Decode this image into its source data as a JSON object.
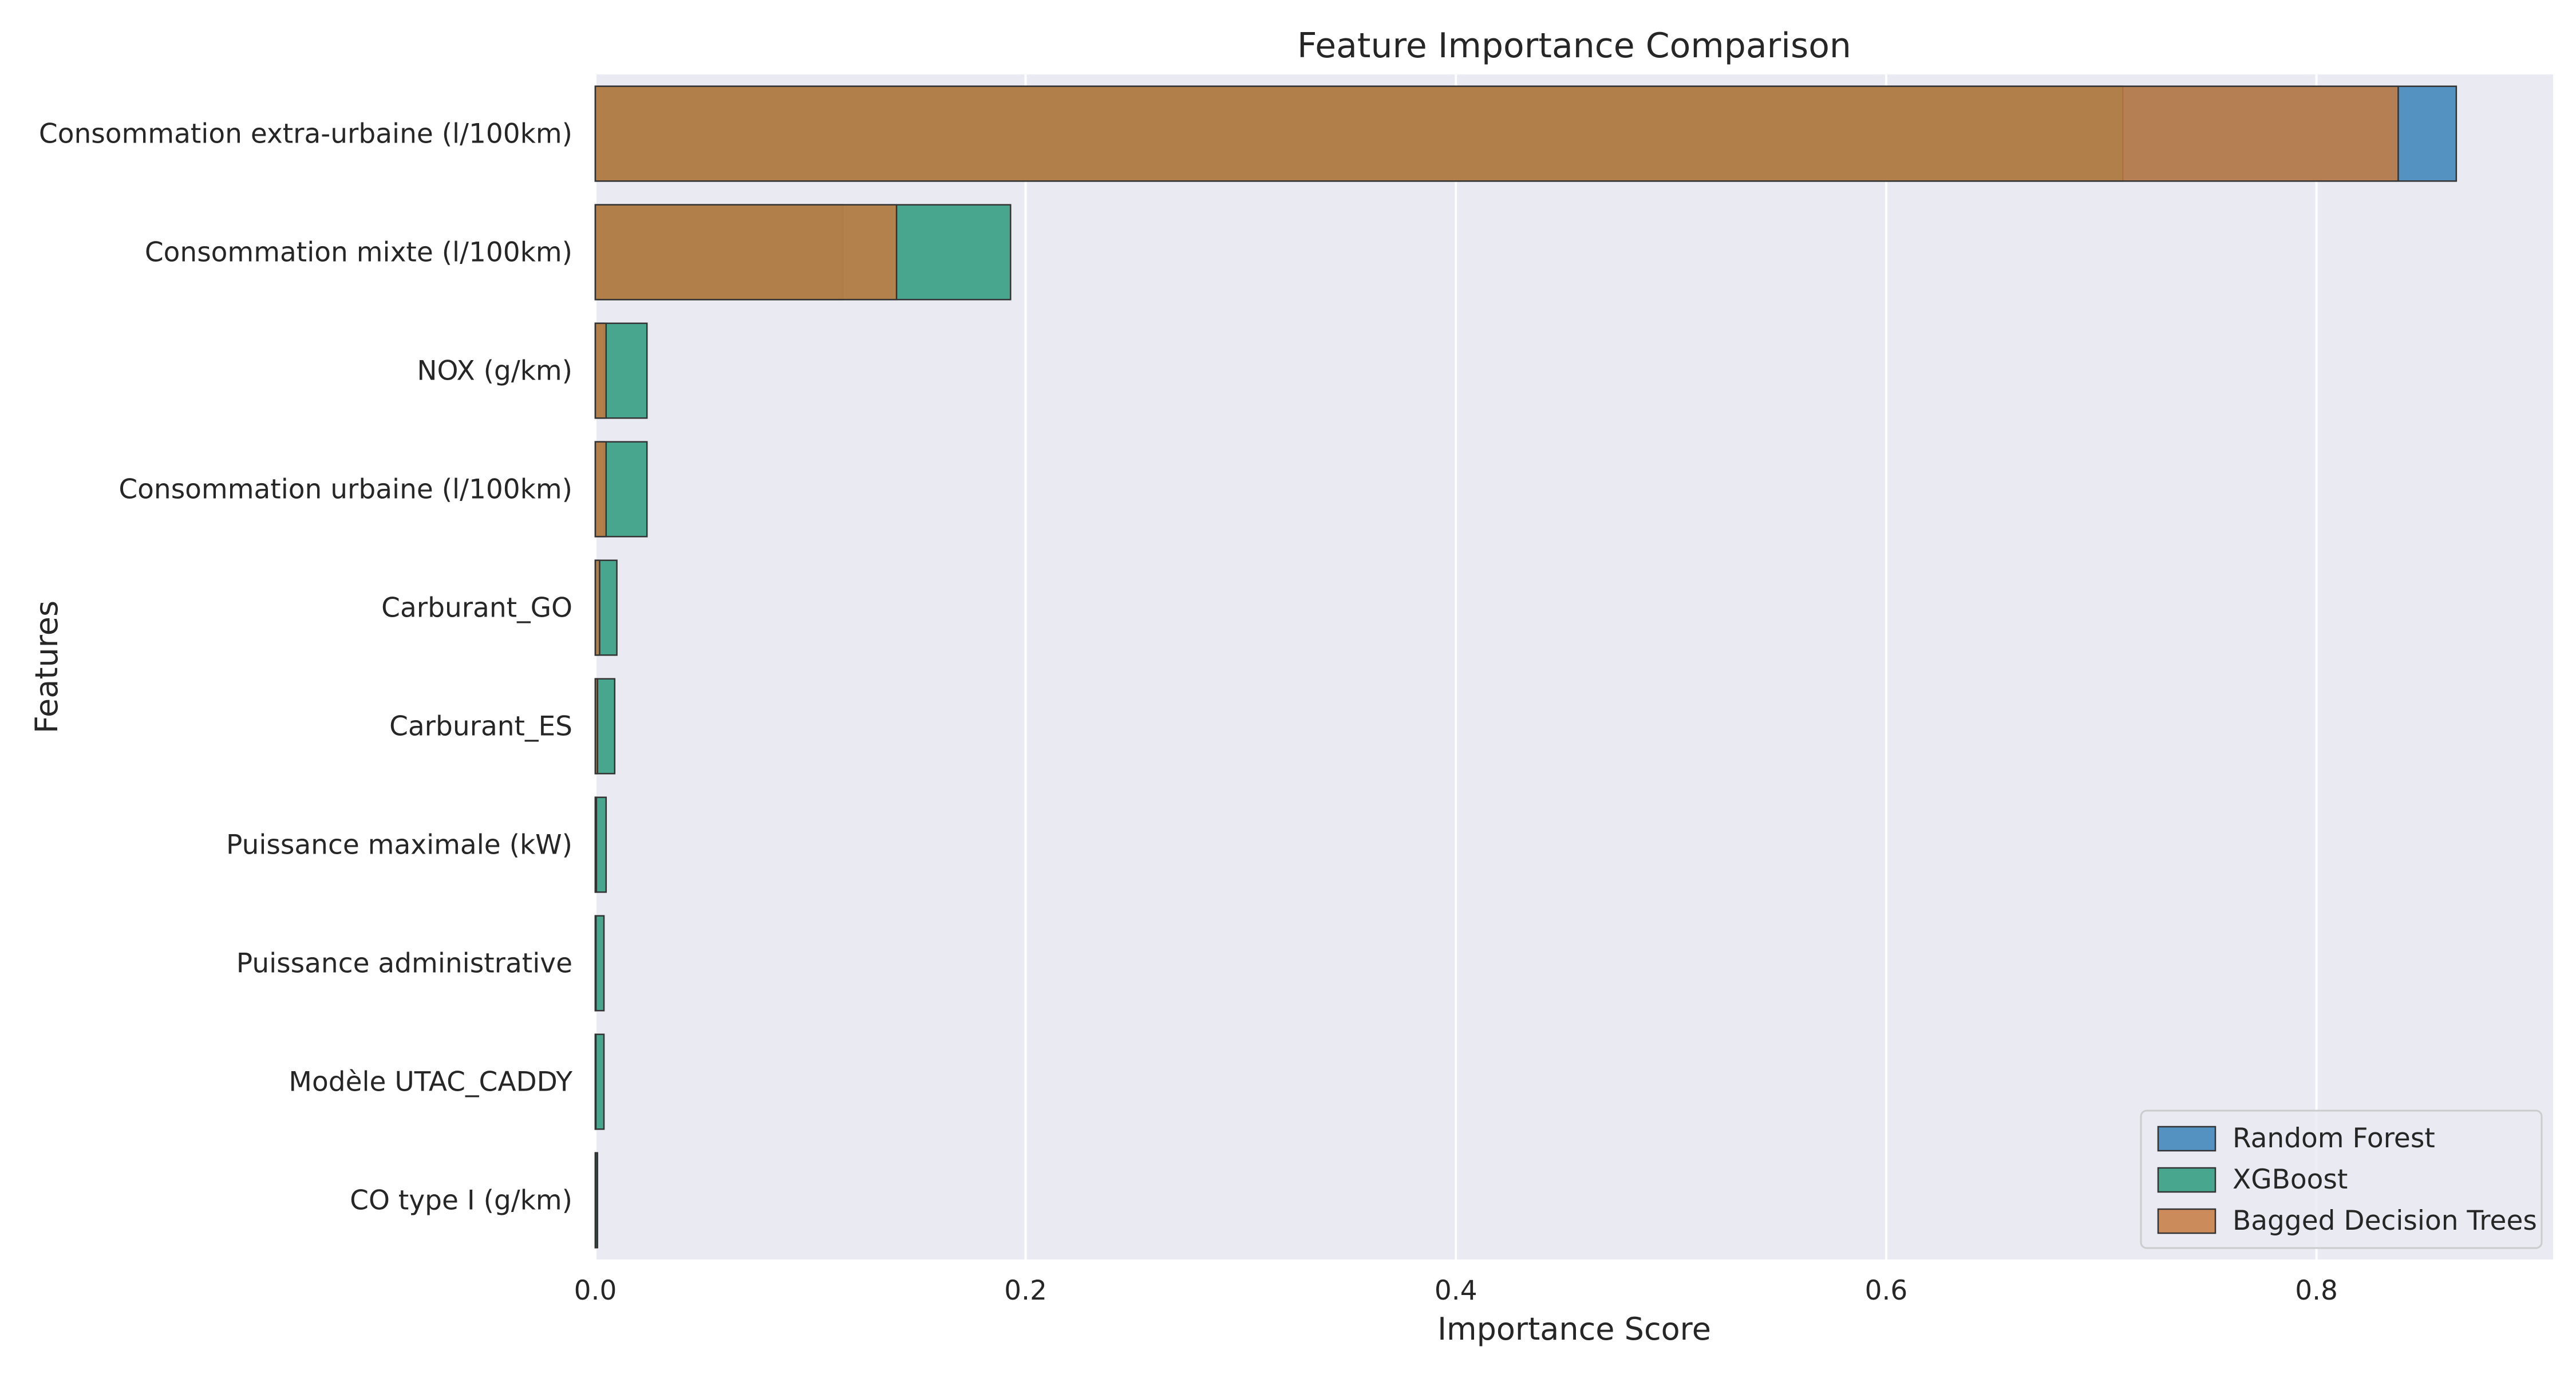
{
  "chart_data": {
    "type": "bar",
    "orientation": "horizontal",
    "title": "Feature Importance Comparison",
    "xlabel": "Importance Score",
    "ylabel": "Features",
    "xlim": [
      0,
      0.91
    ],
    "xticks": [
      "0.0",
      "0.2",
      "0.4",
      "0.6",
      "0.8"
    ],
    "xtick_values": [
      0,
      0.2,
      0.4,
      0.6,
      0.8
    ],
    "grid": true,
    "legend_position": "bottom-right",
    "categories": [
      "Consommation extra-urbaine (l/100km)",
      "Consommation mixte (l/100km)",
      "NOX (g/km)",
      "Consommation urbaine (l/100km)",
      "Carburant_GO",
      "Carburant_ES",
      "Puissance maximale (kW)",
      "Puissance administrative",
      "Modèle UTAC_CADDY",
      "CO type I (g/km)"
    ],
    "series": [
      {
        "name": "Random Forest",
        "color": "#3a82b9",
        "values": [
          0.865,
          0.115,
          0.004,
          0.004,
          0.0015,
          0.0005,
          0.0003,
          0.0002,
          0.0001,
          0.0001
        ]
      },
      {
        "name": "XGBoost",
        "color": "#2c9a7c",
        "values": [
          0.71,
          0.193,
          0.024,
          0.024,
          0.01,
          0.009,
          0.005,
          0.004,
          0.004,
          0.001
        ]
      },
      {
        "name": "Bagged Decision Trees",
        "color": "#c77a3f",
        "values": [
          0.838,
          0.14,
          0.005,
          0.005,
          0.002,
          0.001,
          0.0005,
          0.0003,
          0.0002,
          0.0001
        ]
      }
    ],
    "background": "#eaeaf2",
    "grid_color": "#ffffff"
  }
}
